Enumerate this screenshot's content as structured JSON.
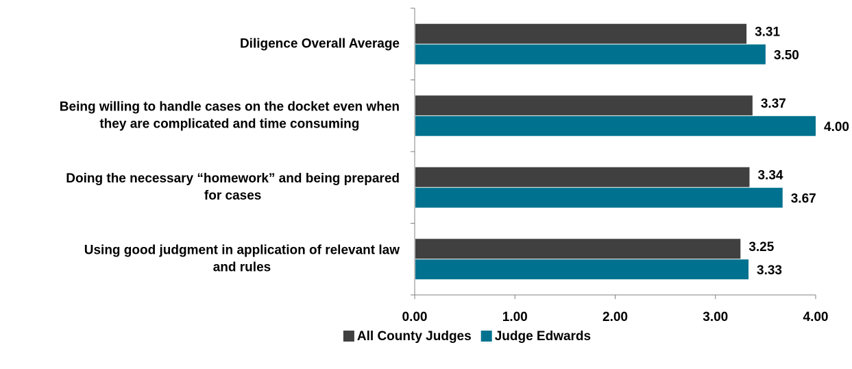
{
  "chart_data": {
    "type": "bar",
    "orientation": "horizontal",
    "categories": [
      [
        "Diligence Overall Average"
      ],
      [
        "Being willing to handle cases on the docket even when",
        "they are complicated and time consuming"
      ],
      [
        "Doing the necessary “homework” and being prepared",
        "for cases"
      ],
      [
        "Using good judgment in application of relevant law",
        "and rules"
      ]
    ],
    "series": [
      {
        "name": "All County Judges",
        "color": "#404040",
        "values": [
          3.31,
          3.37,
          3.34,
          3.25
        ],
        "labels": [
          "3.31",
          "3.37",
          "3.34",
          "3.25"
        ]
      },
      {
        "name": "Judge Edwards",
        "color": "#00728f",
        "values": [
          3.5,
          4.0,
          3.67,
          3.33
        ],
        "labels": [
          "3.50",
          "4.00",
          "3.67",
          "3.33"
        ]
      }
    ],
    "xlim": [
      0,
      4
    ],
    "ticks": [
      0,
      1,
      2,
      3,
      4
    ],
    "tick_labels": [
      "0.00",
      "1.00",
      "2.00",
      "3.00",
      "4.00"
    ],
    "grid": false,
    "legend_position": "bottom-center",
    "title": "",
    "xlabel": "",
    "ylabel": ""
  }
}
